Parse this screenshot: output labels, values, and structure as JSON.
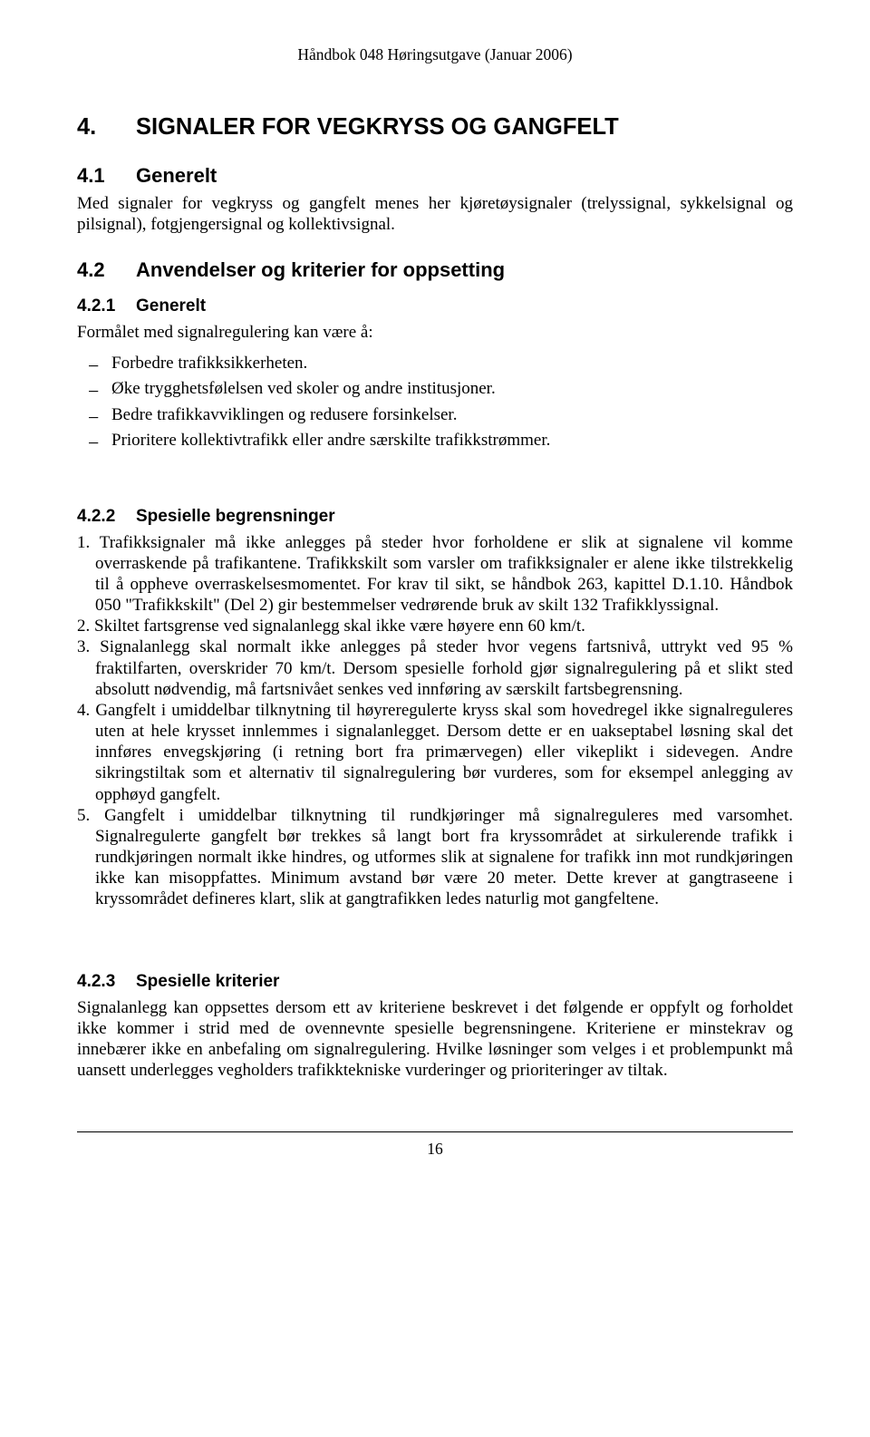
{
  "header": {
    "text": "Håndbok 048 Høringsutgave (Januar 2006)"
  },
  "section_main": {
    "number": "4.",
    "title": "SIGNALER FOR VEGKRYSS OG GANGFELT"
  },
  "section_4_1": {
    "number": "4.1",
    "title": "Generelt",
    "paragraph": "Med signaler for vegkryss og gangfelt menes her kjøretøysignaler (trelyssignal, sykkelsignal og pilsignal), fotgjengersignal og kollektivsignal."
  },
  "section_4_2": {
    "number": "4.2",
    "title": "Anvendelser og kriterier for oppsetting"
  },
  "section_4_2_1": {
    "number": "4.2.1",
    "title": "Generelt",
    "intro": "Formålet med signalregulering kan være å:",
    "bullets": [
      "Forbedre trafikksikkerheten.",
      "Øke trygghetsfølelsen ved skoler og andre institusjoner.",
      "Bedre trafikkavviklingen og redusere forsinkelser.",
      "Prioritere kollektivtrafikk eller andre særskilte trafikkstrømmer."
    ]
  },
  "section_4_2_2": {
    "number": "4.2.2",
    "title": "Spesielle begrensninger",
    "items": [
      "Trafikksignaler må ikke anlegges på steder hvor forholdene er slik at signalene vil komme overraskende på trafikantene. Trafikkskilt som varsler om trafikksignaler er alene ikke tilstrekkelig til å oppheve overraskelsesmomentet. For krav til sikt, se håndbok 263, kapittel D.1.10. Håndbok 050 \"Trafikkskilt\" (Del 2) gir bestemmelser vedrørende bruk av skilt 132 Trafikklyssignal.",
      "Skiltet fartsgrense ved signalanlegg skal ikke være høyere enn 60 km/t.",
      "Signalanlegg skal normalt ikke anlegges på steder hvor vegens fartsnivå, uttrykt ved 95 % fraktilfarten, overskrider 70 km/t. Dersom spesielle forhold gjør signalregulering på et slikt sted absolutt nødvendig, må fartsnivået senkes ved innføring av særskilt fartsbegrensning.",
      "Gangfelt i umiddelbar tilknytning til høyreregulerte kryss skal som hovedregel ikke signalreguleres uten at hele krysset innlemmes i signalanlegget. Dersom dette er en uakseptabel løsning skal det innføres envegskjøring (i retning bort fra primærvegen) eller vikeplikt i sidevegen. Andre sikringstiltak som et alternativ til signalregulering bør vurderes, som for eksempel anlegging av opphøyd gangfelt.",
      "Gangfelt i umiddelbar tilknytning til rundkjøringer må signalreguleres med varsomhet. Signalregulerte gangfelt bør trekkes så langt bort fra kryssområdet at sirkulerende trafikk i rundkjøringen normalt ikke hindres, og utformes slik at signalene for trafikk inn mot rundkjøringen ikke kan misoppfattes. Minimum avstand bør være 20 meter. Dette krever at gangtraseene i kryssområdet defineres klart, slik at gangtrafikken ledes naturlig mot gangfeltene."
    ]
  },
  "section_4_2_3": {
    "number": "4.2.3",
    "title": "Spesielle kriterier",
    "paragraph": "Signalanlegg kan oppsettes dersom ett av kriteriene beskrevet i det følgende er oppfylt og forholdet ikke kommer i strid med de ovennevnte spesielle begrensningene. Kriteriene er minstekrav og innebærer ikke en anbefaling om signalregulering. Hvilke løsninger som velges i et problempunkt må uansett underlegges vegholders trafikktekniske vurderinger og prioriteringer av tiltak."
  },
  "footer": {
    "page_number": "16"
  }
}
